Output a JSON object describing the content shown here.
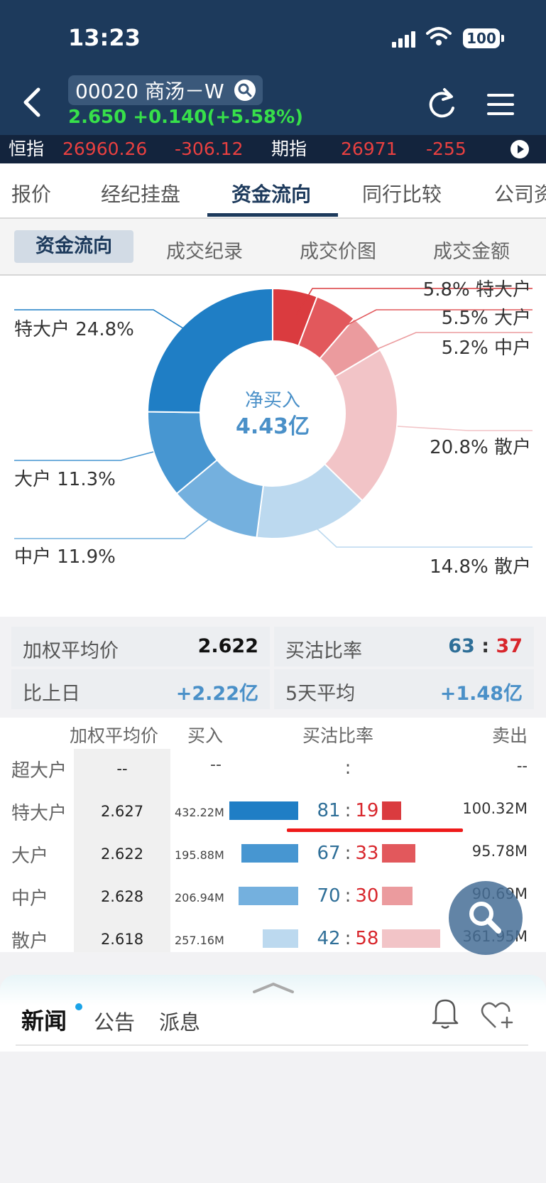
{
  "status_bar": {
    "time": "13:23",
    "battery": "100"
  },
  "header": {
    "stock_label": "00020 商汤－W",
    "quote": "2.650 +0.140(+5.58%)"
  },
  "ticker": {
    "index_name": "恒指",
    "index_value": "26960.26",
    "index_change": "-306.12",
    "futures_name": "期指",
    "futures_value": "26971",
    "futures_change": "-255"
  },
  "tabs": [
    "报价",
    "经纪挂盘",
    "资金流向",
    "同行比较",
    "公司资"
  ],
  "active_tab": "资金流向",
  "subtabs": [
    "资金流向",
    "成交纪录",
    "成交价图",
    "成交金额"
  ],
  "chart_data": {
    "type": "pie",
    "center_title": "净买入",
    "center_value": "4.43亿",
    "slices": [
      {
        "side": "sell",
        "label": "特大户",
        "value": 5.8,
        "color": "#da3b3f"
      },
      {
        "side": "sell",
        "label": "大户",
        "value": 5.5,
        "color": "#e2585c"
      },
      {
        "side": "sell",
        "label": "中户",
        "value": 5.2,
        "color": "#eb9b9e"
      },
      {
        "side": "sell",
        "label": "散户",
        "value": 20.8,
        "color": "#f2c4c7"
      },
      {
        "side": "buy",
        "label": "散户",
        "value": 14.8,
        "color": "#bcd9ef"
      },
      {
        "side": "buy",
        "label": "中户",
        "value": 11.9,
        "color": "#74b0de"
      },
      {
        "side": "buy",
        "label": "大户",
        "value": 11.3,
        "color": "#4796d1"
      },
      {
        "side": "buy",
        "label": "特大户",
        "value": 24.8,
        "color": "#1f7ec5"
      }
    ],
    "callouts": {
      "sell_xl": "5.8% 特大户",
      "sell_l": "5.5% 大户",
      "sell_m": "5.2% 中户",
      "sell_s": "20.8% 散户",
      "buy_s": "14.8% 散户",
      "buy_m": "中户 11.9%",
      "buy_l": "大户 11.3%",
      "buy_xl": "特大户 24.8%"
    }
  },
  "summary": {
    "wavg_label": "加权平均价",
    "wavg_value": "2.622",
    "ratio_label": "买沽比率",
    "ratio_buy": "63",
    "ratio_sep": ":",
    "ratio_sell": "37",
    "prev_label": "比上日",
    "prev_value": "+2.22亿",
    "avg5_label": "5天平均",
    "avg5_value": "+1.48亿"
  },
  "table": {
    "headers": {
      "avg": "加权平均价",
      "buy": "买入",
      "ratio": "买沽比率",
      "sell": "卖出"
    },
    "rows": [
      {
        "label": "超大户",
        "avg": "--",
        "buy": "--",
        "ratio_buy": "",
        "ratio_sep": ":",
        "ratio_sell": "",
        "sell": "--",
        "buy_pct": 0,
        "sell_pct": 0
      },
      {
        "label": "特大户",
        "avg": "2.627",
        "buy": "432.22M",
        "ratio_buy": "81",
        "ratio_sep": ":",
        "ratio_sell": "19",
        "sell": "100.32M",
        "buy_pct": 81,
        "sell_pct": 19
      },
      {
        "label": "大户",
        "avg": "2.622",
        "buy": "195.88M",
        "ratio_buy": "67",
        "ratio_sep": ":",
        "ratio_sell": "33",
        "sell": "95.78M",
        "buy_pct": 67,
        "sell_pct": 33
      },
      {
        "label": "中户",
        "avg": "2.628",
        "buy": "206.94M",
        "ratio_buy": "70",
        "ratio_sep": ":",
        "ratio_sell": "30",
        "sell": "90.69M",
        "buy_pct": 70,
        "sell_pct": 30
      },
      {
        "label": "散户",
        "avg": "2.618",
        "buy": "257.16M",
        "ratio_buy": "42",
        "ratio_sep": ":",
        "ratio_sell": "58",
        "sell": "361.95M",
        "buy_pct": 42,
        "sell_pct": 58
      }
    ]
  },
  "news_bar": {
    "tabs": [
      "新闻",
      "公告",
      "派息"
    ]
  }
}
